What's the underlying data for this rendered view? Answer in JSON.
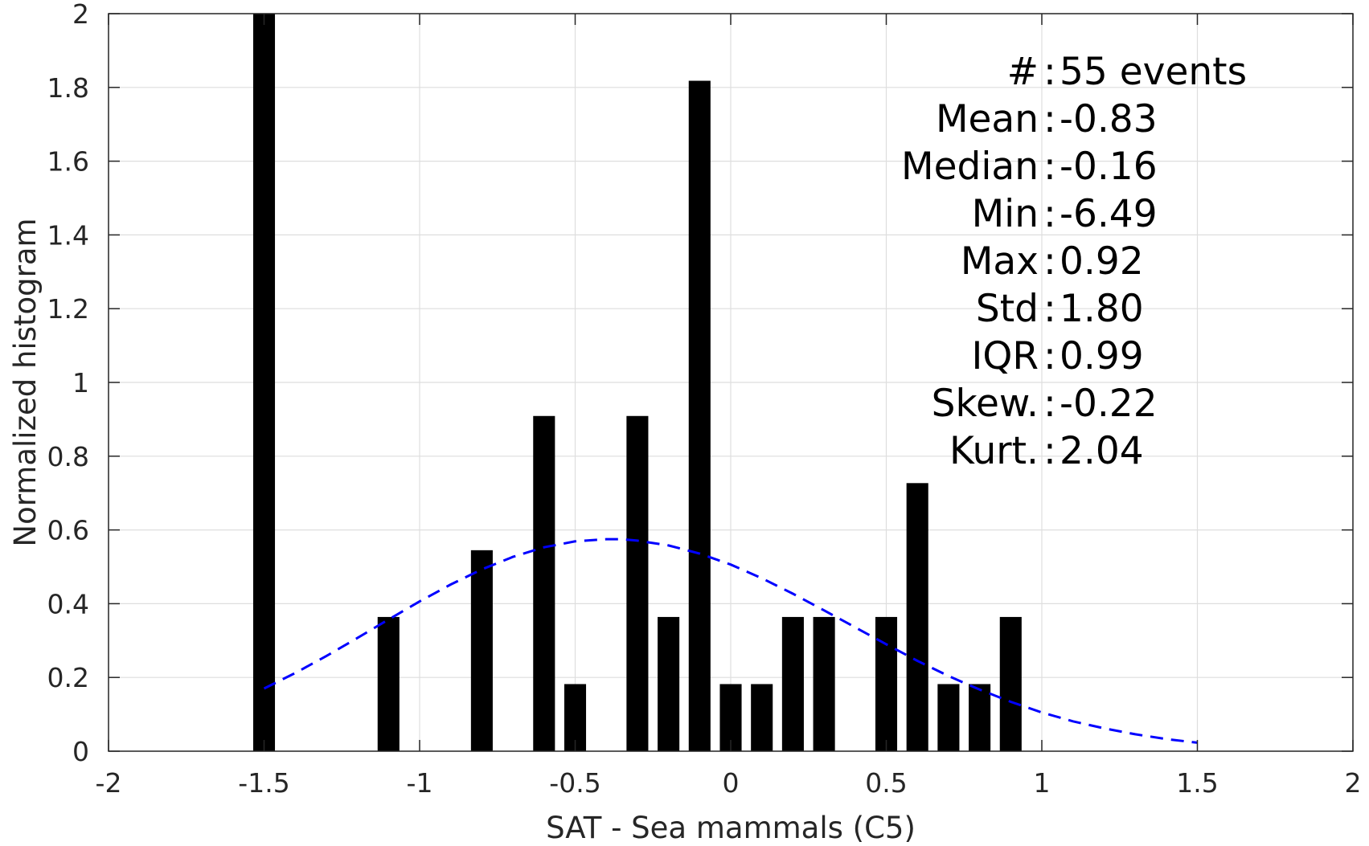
{
  "chart_data": {
    "type": "bar",
    "xlabel": "SAT - Sea mammals (C5)",
    "ylabel": "Normalized histogram",
    "xlim": [
      -2,
      2
    ],
    "ylim": [
      0,
      2
    ],
    "xticks": [
      "-2",
      "-1.5",
      "-1",
      "-0.5",
      "0",
      "0.5",
      "1",
      "1.5",
      "2"
    ],
    "yticks": [
      "0",
      "0.2",
      "0.4",
      "0.6",
      "0.8",
      "1",
      "1.2",
      "1.4",
      "1.6",
      "1.8",
      "2"
    ],
    "grid": true,
    "bar_color": "#000000",
    "bins": [
      {
        "x": -1.5,
        "value": 2.0
      },
      {
        "x": -1.1,
        "value": 0.364
      },
      {
        "x": -0.8,
        "value": 0.545
      },
      {
        "x": -0.6,
        "value": 0.909
      },
      {
        "x": -0.5,
        "value": 0.182
      },
      {
        "x": -0.3,
        "value": 0.909
      },
      {
        "x": -0.2,
        "value": 0.364
      },
      {
        "x": -0.1,
        "value": 1.818
      },
      {
        "x": 0.0,
        "value": 0.182
      },
      {
        "x": 0.1,
        "value": 0.182
      },
      {
        "x": 0.2,
        "value": 0.364
      },
      {
        "x": 0.3,
        "value": 0.364
      },
      {
        "x": 0.5,
        "value": 0.364
      },
      {
        "x": 0.6,
        "value": 0.727
      },
      {
        "x": 0.7,
        "value": 0.182
      },
      {
        "x": 0.8,
        "value": 0.182
      },
      {
        "x": 0.9,
        "value": 0.364
      }
    ],
    "bin_width": 0.07,
    "fit_curve": {
      "style": "dashed",
      "color": "#0000ff",
      "x": [
        -1.5,
        -1.4,
        -1.3,
        -1.2,
        -1.1,
        -1.0,
        -0.9,
        -0.8,
        -0.7,
        -0.6,
        -0.5,
        -0.4,
        -0.35,
        -0.3,
        -0.2,
        -0.1,
        0.0,
        0.1,
        0.2,
        0.3,
        0.4,
        0.5,
        0.6,
        0.7,
        0.8,
        0.9,
        1.0,
        1.1,
        1.2,
        1.3,
        1.4,
        1.5
      ],
      "y": [
        0.17,
        0.212,
        0.258,
        0.307,
        0.357,
        0.406,
        0.452,
        0.493,
        0.527,
        0.553,
        0.569,
        0.575,
        0.575,
        0.571,
        0.558,
        0.536,
        0.506,
        0.469,
        0.427,
        0.382,
        0.336,
        0.29,
        0.245,
        0.204,
        0.167,
        0.134,
        0.105,
        0.081,
        0.062,
        0.046,
        0.033,
        0.023
      ]
    },
    "stats": [
      {
        "label": "#  ",
        "value": "55 events"
      },
      {
        "label": "Mean ",
        "value": "-0.83"
      },
      {
        "label": "Median ",
        "value": "-0.16"
      },
      {
        "label": "Min ",
        "value": "-6.49"
      },
      {
        "label": "Max ",
        "value": "0.92"
      },
      {
        "label": "Std ",
        "value": "1.80"
      },
      {
        "label": "IQR ",
        "value": "0.99"
      },
      {
        "label": "Skew. ",
        "value": "-0.22"
      },
      {
        "label": "Kurt. ",
        "value": "2.04"
      }
    ]
  }
}
